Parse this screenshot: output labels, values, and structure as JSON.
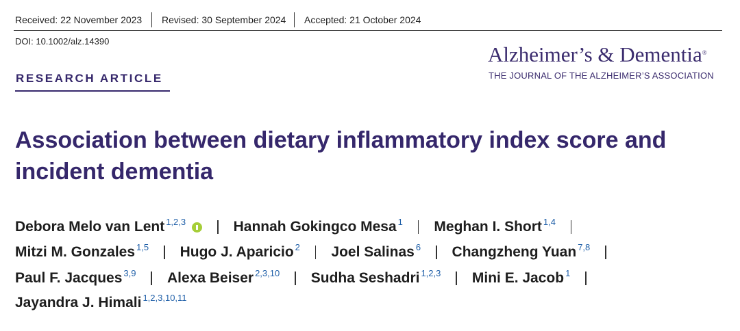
{
  "header": {
    "received": "Received: 22 November 2023",
    "revised": "Revised: 30 September 2024",
    "accepted": "Accepted: 21 October 2024",
    "doi": "DOI: 10.1002/alz.14390"
  },
  "journal": {
    "name": "Alzheimer’s & Dementia",
    "registered": "®",
    "subtitle": "THE JOURNAL OF THE ALZHEIMER’S ASSOCIATION"
  },
  "article_type": "RESEARCH ARTICLE",
  "title": "Association between dietary inflammatory index score and incident dementia",
  "authors": [
    {
      "name": "Debora Melo van Lent",
      "affiliations": "1,2,3"
    },
    {
      "name": "Hannah Gokingco Mesa",
      "affiliations": "1"
    },
    {
      "name": "Meghan I. Short",
      "affiliations": "1,4"
    },
    {
      "name": "Mitzi M. Gonzales",
      "affiliations": "1,5"
    },
    {
      "name": "Hugo J. Aparicio",
      "affiliations": "2"
    },
    {
      "name": "Joel Salinas",
      "affiliations": "6"
    },
    {
      "name": "Changzheng Yuan",
      "affiliations": "7,8"
    },
    {
      "name": "Paul F. Jacques",
      "affiliations": "3,9"
    },
    {
      "name": "Alexa Beiser",
      "affiliations": "2,3,10"
    },
    {
      "name": "Sudha Seshadri",
      "affiliations": "1,2,3"
    },
    {
      "name": "Mini E. Jacob",
      "affiliations": "1"
    },
    {
      "name": "Jayandra J. Himali",
      "affiliations": "1,2,3,10,11"
    }
  ]
}
